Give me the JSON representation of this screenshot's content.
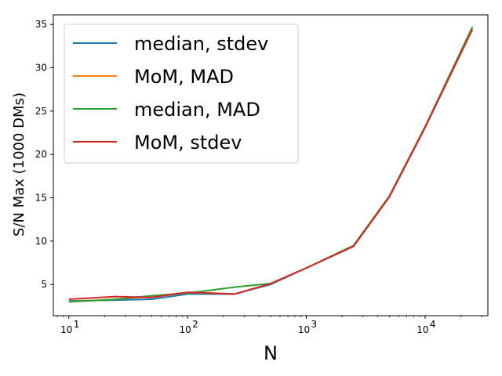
{
  "chart_data": {
    "type": "line",
    "title": "",
    "xlabel": "N",
    "ylabel": "S/N Max (1000 DMs)",
    "xscale": "log",
    "xlim": [
      7.4,
      33800
    ],
    "ylim": [
      1.4,
      36.1
    ],
    "x": [
      10,
      25,
      50,
      100,
      250,
      500,
      1000,
      2500,
      5000,
      10000,
      25000
    ],
    "x_ticks": [
      10,
      100,
      1000,
      10000
    ],
    "x_tick_labels": [
      {
        "base": "10",
        "exp": "1"
      },
      {
        "base": "10",
        "exp": "2"
      },
      {
        "base": "10",
        "exp": "3"
      },
      {
        "base": "10",
        "exp": "4"
      }
    ],
    "y_ticks": [
      5,
      10,
      15,
      20,
      25,
      30,
      35
    ],
    "y_tick_labels": [
      "5",
      "10",
      "15",
      "20",
      "25",
      "30",
      "35"
    ],
    "grid": false,
    "legend_position": "top-left",
    "series": [
      {
        "name": "median, stdev",
        "color": "#1f77b4",
        "values": [
          3.1,
          3.2,
          3.3,
          3.9,
          3.9,
          5.0,
          6.9,
          9.4,
          15.1,
          23.1,
          34.5
        ]
      },
      {
        "name": "MoM, MAD",
        "color": "#ff7f0e",
        "values": [
          3.0,
          3.3,
          3.6,
          4.1,
          3.9,
          5.1,
          6.9,
          9.5,
          15.2,
          23.2,
          34.6
        ]
      },
      {
        "name": "median, MAD",
        "color": "#2ca02c",
        "values": [
          3.0,
          3.3,
          3.7,
          4.0,
          4.7,
          5.1,
          6.9,
          9.5,
          15.2,
          23.2,
          34.7
        ]
      },
      {
        "name": "MoM, stdev",
        "color": "#d62728",
        "values": [
          3.3,
          3.6,
          3.5,
          4.1,
          3.9,
          5.1,
          6.9,
          9.4,
          15.1,
          23.1,
          34.4
        ]
      }
    ]
  }
}
